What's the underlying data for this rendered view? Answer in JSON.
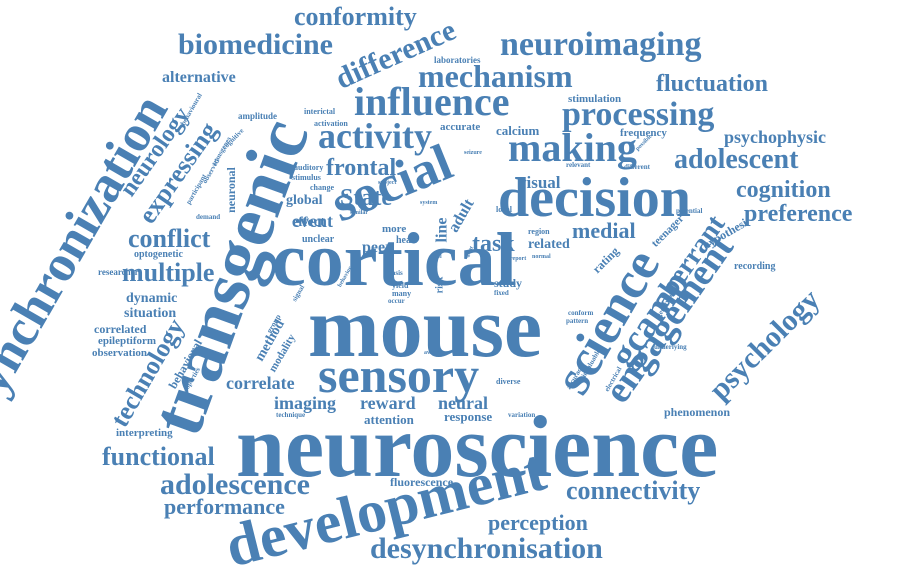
{
  "words": {
    "neuroscience": "neuroscience",
    "mouse": "mouse",
    "cortical": "cortical",
    "transgenic": "transgenic",
    "desynchronization": "desynchronization",
    "development": "development",
    "sensory": "sensory",
    "social": "social",
    "decision": "decision",
    "science": "science",
    "influence": "influence",
    "mechanism": "mechanism",
    "activity": "activity",
    "making": "making",
    "processing": "processing",
    "neuroimaging": "neuroimaging",
    "biomedicine": "biomedicine",
    "conformity": "conformity",
    "difference": "difference",
    "fluctuation": "fluctuation",
    "adolescent": "adolescent",
    "cognition": "cognition",
    "preference": "preference",
    "engagement": "engagement",
    "gcamp": "gcamp",
    "aberrant": "aberrant",
    "psychology": "psychology",
    "psychophysic": "psychophysic",
    "connectivity": "connectivity",
    "desynchronisation": "desynchronisation",
    "perception": "perception",
    "adolescence": "adolescence",
    "performance": "performance",
    "functional": "functional",
    "technology": "technology",
    "neurology": "neurology",
    "expressing": "expressing",
    "conflict": "conflict",
    "multiple": "multiple",
    "frontal": "frontal",
    "state": "State",
    "task": "task",
    "medial": "medial",
    "visual": "visual",
    "imaging": "imaging",
    "reward": "reward",
    "neural": "neural",
    "correlate": "correlate",
    "alternative": "alternative",
    "event": "event",
    "global": "global",
    "effect": "effect",
    "peer": "peer",
    "line": "line",
    "adult": "adult",
    "related": "related",
    "dynamic": "dynamic",
    "situation": "situation",
    "correlated": "correlated",
    "epileptiform": "epileptiform",
    "observation": "observation",
    "method": "method",
    "modality": "modality",
    "behavioral": "behavioral",
    "fluorescence": "fluorescence",
    "response": "response",
    "attention": "attention",
    "interpreting": "interpreting",
    "phenomenon": "phenomenon",
    "rating": "rating",
    "teenager": "teenager",
    "hypothesi": "hypothesi",
    "recording": "recording",
    "optogenetic": "optogenetic",
    "researcher": "researcher",
    "neuronal": "neuronal",
    "calcium": "calcium",
    "accurate": "accurate",
    "frequency": "frequency",
    "stimulation": "stimulation",
    "laboratories": "laboratories",
    "amplitude": "amplitude",
    "activation": "activation",
    "interictal": "interictal",
    "auditory": "auditory",
    "stimulus": "stimulus",
    "change": "change",
    "unclear": "unclear",
    "study": "study",
    "more": "more",
    "yield": "yield",
    "many": "many",
    "occur": "occur",
    "risk": "risk",
    "region": "region",
    "local": "local",
    "diverse": "diverse",
    "variation": "variation",
    "technique": "technique",
    "potential": "potential",
    "different": "different",
    "relevant": "relevant",
    "group": "group",
    "signal": "signal",
    "basis": "basis",
    "life": "life",
    "head": "head",
    "fixed": "fixed",
    "demand": "demand",
    "participant": "participant",
    "observed": "observed",
    "transgenes": "transgenes",
    "cognitive": "cognitive",
    "behavioural": "behavioural",
    "properties": "properties",
    "electrical": "electrical",
    "accuracy": "accuracy",
    "invaluable": "invaluable",
    "underlying": "underlying",
    "genotype": "genotype",
    "conform": "conform",
    "pattern": "pattern",
    "aware": "aware",
    "possible": "possible",
    "seizure": "seizure",
    "system": "system",
    "subject": "subject",
    "similar": "similar",
    "behavior": "behavior",
    "report": "report",
    "normal": "normal",
    "tool": "tool",
    "agent": "agent"
  }
}
